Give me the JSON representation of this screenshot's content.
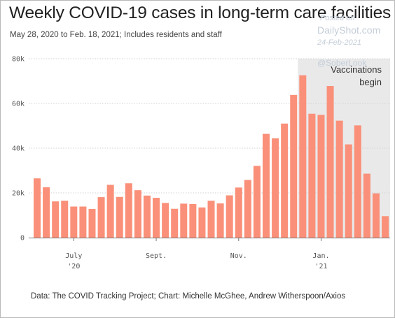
{
  "watermark": {
    "posted_on": "Posted on",
    "site": "DailyShot.com",
    "date": "24-Feb-2021",
    "handle": "@SoberLook"
  },
  "footer": {
    "source": "Data: The COVID Tracking Project; Chart: Michelle McGhee, Andrew Witherspoon/Axios"
  },
  "chart_data": {
    "type": "bar",
    "title": "Weekly COVID-19 cases in long-term care facilities",
    "subtitle": "May 28, 2020 to Feb. 18, 2021; Includes residents and staff",
    "xlabel": "",
    "ylabel": "",
    "ylim": [
      0,
      80000
    ],
    "y_ticks": [
      0,
      20000,
      40000,
      60000,
      80000
    ],
    "y_tick_labels": [
      "0",
      "20k",
      "40k",
      "60k",
      "80k"
    ],
    "x_tick_labels": [
      {
        "line1": "July",
        "line2": "'20",
        "at_index": 4
      },
      {
        "line1": "Sept.",
        "line2": "",
        "at_index": 13
      },
      {
        "line1": "Nov.",
        "line2": "",
        "at_index": 22
      },
      {
        "line1": "Jan.",
        "line2": "'21",
        "at_index": 31
      }
    ],
    "grid": "horizontal",
    "bar_color": "#fa9079",
    "shade_color": "#e9e9ea",
    "values": [
      26500,
      22500,
      16200,
      16500,
      13900,
      13900,
      12800,
      18100,
      23600,
      18200,
      24300,
      21200,
      18800,
      17800,
      15500,
      12900,
      15200,
      15000,
      13500,
      16500,
      15300,
      18900,
      22400,
      25800,
      32100,
      46400,
      44400,
      51000,
      63800,
      72600,
      55400,
      54900,
      67800,
      52300,
      41700,
      50200,
      28600,
      19800,
      9600
    ],
    "shaded_from_index": 29,
    "annotation": [
      "Vaccinations",
      "begin"
    ]
  }
}
